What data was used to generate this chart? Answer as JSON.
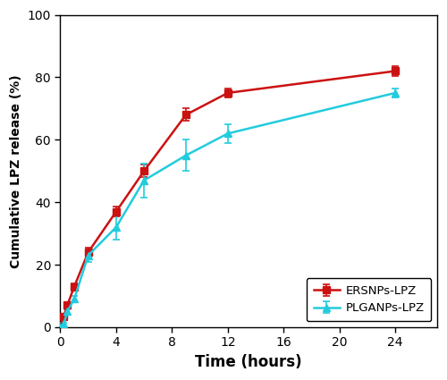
{
  "ersnps_x": [
    0,
    0.25,
    0.5,
    1,
    2,
    4,
    6,
    9,
    12,
    24
  ],
  "ersnps_y": [
    0,
    3.5,
    7,
    13,
    24,
    37,
    50,
    68,
    75,
    82
  ],
  "ersnps_yerr": [
    0,
    0.4,
    0.6,
    1.0,
    1.5,
    1.5,
    2.0,
    2.0,
    1.5,
    1.5
  ],
  "plganps_x": [
    0,
    0.25,
    0.5,
    1,
    2,
    4,
    6,
    9,
    12,
    24
  ],
  "plganps_y": [
    0,
    1,
    5,
    9,
    23,
    32,
    47,
    55,
    62,
    75
  ],
  "plganps_yerr": [
    0,
    0.4,
    0.6,
    1.0,
    2.0,
    4.0,
    5.5,
    5.0,
    3.0,
    1.5
  ],
  "ersnps_color": "#cc1111",
  "plganps_color": "#22ccdd",
  "xlabel": "Time (hours)",
  "ylabel": "Cumulative LPZ release (%)",
  "xlim": [
    0,
    27
  ],
  "ylim": [
    0,
    100
  ],
  "xticks": [
    0,
    4,
    8,
    12,
    16,
    20,
    24
  ],
  "yticks": [
    0,
    20,
    40,
    60,
    80,
    100
  ],
  "legend_ersnps": "ERSNPs-LPZ",
  "legend_plganps": "PLGANPs-LPZ",
  "marker_ersnps": "s",
  "marker_plganps": "^",
  "linewidth": 1.8,
  "markersize": 5.5
}
